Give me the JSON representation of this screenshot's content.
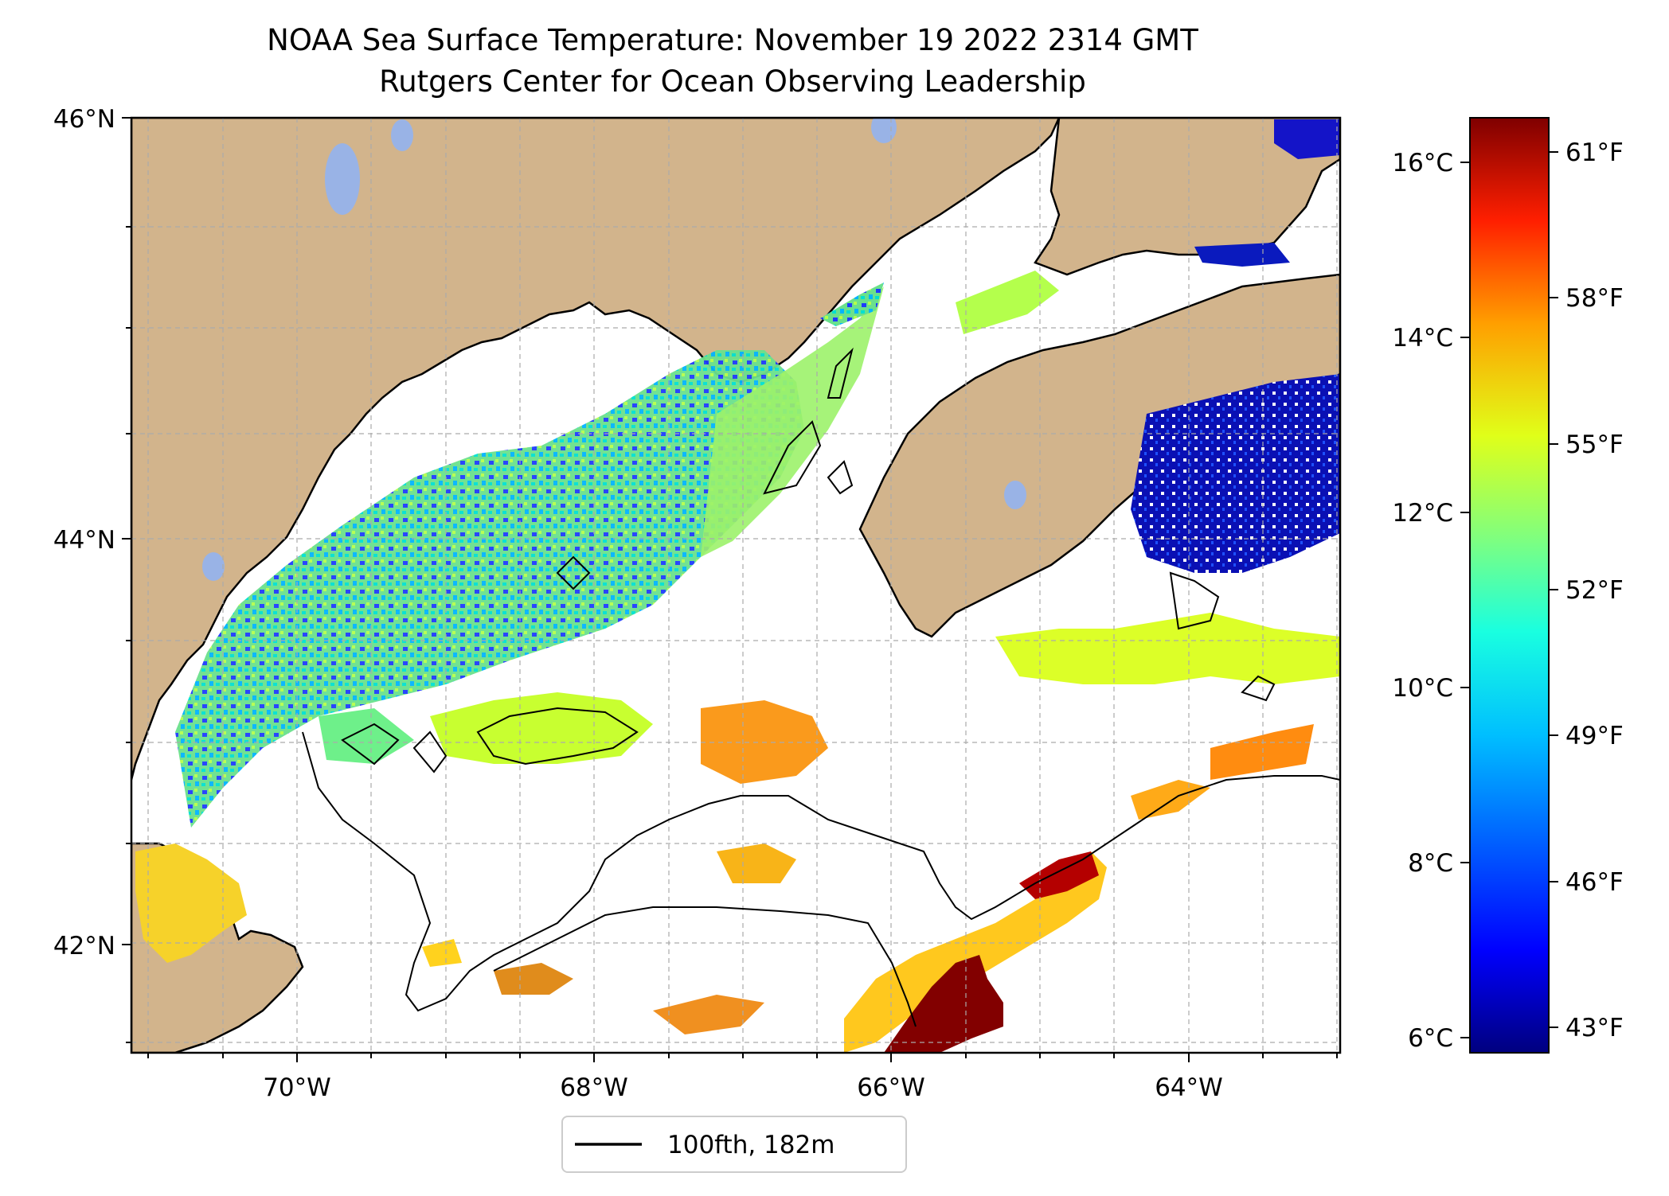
{
  "title": "NOAA Sea Surface Temperature: November 19 2022 2314 GMT",
  "subtitle": "Rutgers Center for Ocean Observing Leadership",
  "map": {
    "lat_labels": [
      "46°N",
      "44°N",
      "42°N"
    ],
    "lon_labels": [
      "70°W",
      "68°W",
      "66°W",
      "64°W"
    ],
    "lon_range": [
      -71.2,
      -63.05
    ],
    "lat_range": [
      41.45,
      46.0
    ],
    "land_color": "#d2b48c",
    "lake_color": "#99b3e6",
    "ocean_color": "#ffffff",
    "contour_color": "#000000"
  },
  "legend": {
    "label": "100fth, 182m"
  },
  "colorbar": {
    "celsius_labels": [
      "16°C",
      "14°C",
      "12°C",
      "10°C",
      "8°C",
      "6°C"
    ],
    "fahrenheit_labels": [
      "61°F",
      "58°F",
      "55°F",
      "52°F",
      "49°F",
      "46°F",
      "43°F"
    ],
    "colormap": "jet",
    "colors": [
      "#00007f",
      "#0000ff",
      "#007fff",
      "#00ffff",
      "#7fff7f",
      "#ffff00",
      "#ff7f00",
      "#ff0000",
      "#7f0000"
    ]
  }
}
